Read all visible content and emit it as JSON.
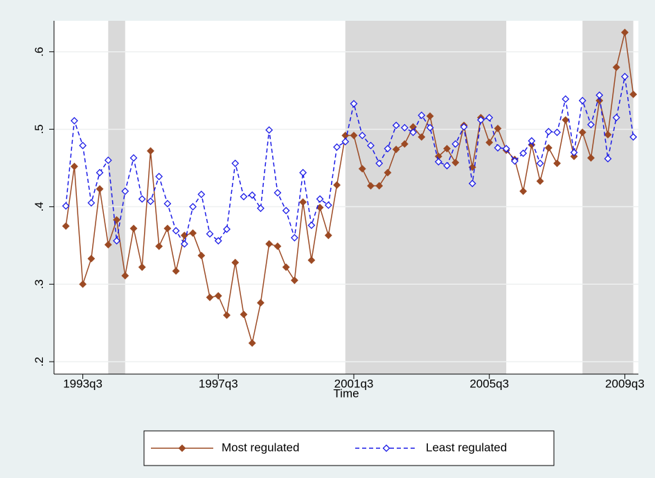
{
  "chart_data": {
    "type": "line",
    "xlabel": "Time",
    "x": [
      132,
      133,
      134,
      135,
      136,
      137,
      138,
      139,
      140,
      141,
      142,
      143,
      144,
      145,
      146,
      147,
      148,
      149,
      150,
      151,
      152,
      153,
      154,
      155,
      156,
      157,
      158,
      159,
      160,
      161,
      162,
      163,
      164,
      165,
      166,
      167,
      168,
      169,
      170,
      171,
      172,
      173,
      174,
      175,
      176,
      177,
      178,
      179,
      180,
      181,
      182,
      183,
      184,
      185,
      186,
      187,
      188,
      189,
      190,
      191,
      192,
      193,
      194,
      195,
      196,
      197,
      198,
      199
    ],
    "xlim": [
      130.6,
      199.6
    ],
    "xticks": [
      {
        "value": 134,
        "label": "1993q3"
      },
      {
        "value": 150,
        "label": "1997q3"
      },
      {
        "value": 166,
        "label": "2001q3"
      },
      {
        "value": 182,
        "label": "2005q3"
      },
      {
        "value": 198,
        "label": "2009q3"
      }
    ],
    "ylim": [
      0.184,
      0.64
    ],
    "yticks": [
      {
        "value": 0.2,
        "label": ".2"
      },
      {
        "value": 0.3,
        "label": ".3"
      },
      {
        "value": 0.4,
        "label": ".4"
      },
      {
        "value": 0.5,
        "label": ".5"
      },
      {
        "value": 0.6,
        "label": ".6"
      }
    ],
    "grid": true,
    "shaded_regions": [
      [
        137,
        139
      ],
      [
        165,
        184
      ],
      [
        193,
        199
      ]
    ],
    "shade_color": "#d9d9d9",
    "series": [
      {
        "name": "Most regulated",
        "color": "#9c4a24",
        "line_style": "solid",
        "marker": "filled-diamond",
        "values": [
          0.375,
          0.452,
          0.3,
          0.333,
          0.423,
          0.351,
          0.383,
          0.311,
          0.372,
          0.322,
          0.472,
          0.349,
          0.372,
          0.317,
          0.363,
          0.366,
          0.337,
          0.283,
          0.285,
          0.26,
          0.328,
          0.261,
          0.224,
          0.276,
          0.352,
          0.349,
          0.322,
          0.305,
          0.406,
          0.331,
          0.399,
          0.363,
          0.428,
          0.492,
          0.492,
          0.449,
          0.427,
          0.427,
          0.444,
          0.474,
          0.481,
          0.503,
          0.49,
          0.517,
          0.465,
          0.475,
          0.457,
          0.505,
          0.451,
          0.515,
          0.483,
          0.501,
          0.473,
          0.461,
          0.42,
          0.48,
          0.433,
          0.476,
          0.456,
          0.512,
          0.465,
          0.496,
          0.463,
          0.537,
          0.493,
          0.58,
          0.625,
          0.545
        ]
      },
      {
        "name": "Least regulated",
        "color": "#1a1ae6",
        "line_style": "dashed",
        "marker": "hollow-diamond",
        "values": [
          0.401,
          0.511,
          0.479,
          0.405,
          0.444,
          0.46,
          0.356,
          0.42,
          0.463,
          0.41,
          0.407,
          0.439,
          0.404,
          0.369,
          0.352,
          0.4,
          0.416,
          0.365,
          0.356,
          0.371,
          0.456,
          0.413,
          0.415,
          0.398,
          0.499,
          0.418,
          0.395,
          0.36,
          0.444,
          0.376,
          0.41,
          0.402,
          0.477,
          0.484,
          0.533,
          0.492,
          0.479,
          0.456,
          0.475,
          0.505,
          0.502,
          0.496,
          0.518,
          0.502,
          0.458,
          0.453,
          0.481,
          0.503,
          0.43,
          0.512,
          0.515,
          0.476,
          0.475,
          0.459,
          0.469,
          0.485,
          0.456,
          0.497,
          0.496,
          0.539,
          0.47,
          0.537,
          0.506,
          0.544,
          0.462,
          0.515,
          0.568,
          0.49
        ]
      }
    ]
  }
}
